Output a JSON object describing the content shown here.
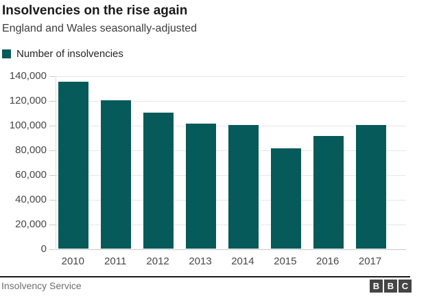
{
  "header": {
    "title": "Insolvencies on the rise again",
    "subtitle": "England and Wales seasonally-adjusted"
  },
  "legend": {
    "label": "Number of insolvencies",
    "swatch_icon": "filled-square-icon",
    "swatch_color": "#075a5a"
  },
  "chart_data": {
    "type": "bar",
    "title": "Insolvencies on the rise again",
    "subtitle": "England and Wales seasonally-adjusted",
    "categories": [
      "2010",
      "2011",
      "2012",
      "2013",
      "2014",
      "2015",
      "2016",
      "2017"
    ],
    "series": [
      {
        "name": "Number of insolvencies",
        "values": [
          135000,
          120000,
          110000,
          101000,
          100000,
          81000,
          91000,
          100000
        ]
      }
    ],
    "xlabel": "",
    "ylabel": "",
    "ylim": [
      0,
      140000
    ],
    "ytick_step": 20000,
    "ytick_labels": [
      "0",
      "20,000",
      "40,000",
      "60,000",
      "80,000",
      "100,000",
      "120,000",
      "140,000"
    ],
    "grid": true,
    "legend_position": "top-left",
    "bar_color": "#075a5a",
    "gridline_color": "#e6e6e6",
    "axis_color": "#c9c9c9"
  },
  "footer": {
    "source": "Insolvency Service",
    "logo_letters": [
      "B",
      "B",
      "C"
    ]
  },
  "colors": {
    "accent_teal": "#075a5a",
    "title_text": "#1a1a1a",
    "subtitle_text": "#3d3d3d",
    "axis_label_text": "#474747",
    "source_text": "#6e6e6e",
    "logo_box": "#454545",
    "background": "#ffffff"
  }
}
